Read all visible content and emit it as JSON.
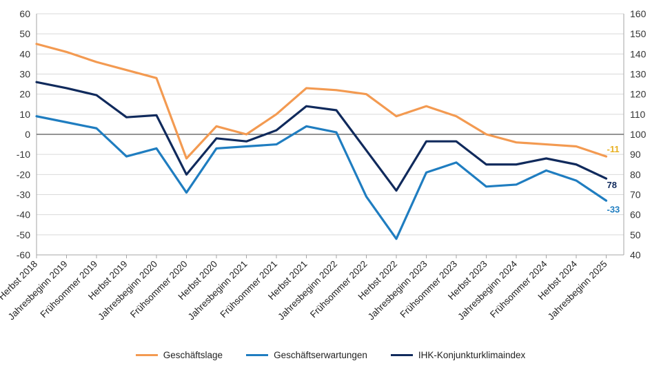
{
  "chart_data": {
    "type": "line",
    "categories": [
      "Herbst 2018",
      "Jahresbeginn 2019",
      "Frühsommer 2019",
      "Herbst 2019",
      "Jahresbeginn 2020",
      "Frühsommer 2020",
      "Herbst 2020",
      "Jahresbeginn 2021",
      "Frühsommer 2021",
      "Herbst 2021",
      "Jahresbeginn 2022",
      "Frühsommer 2022",
      "Herbst 2022",
      "Jahresbeginn 2023",
      "Frühsommer 2023",
      "Herbst 2023",
      "Jahresbeginn 2024",
      "Frühsommer 2024",
      "Herbst 2024",
      "Jahresbeginn 2025"
    ],
    "ylim": [
      -60,
      60
    ],
    "yticks": [
      -60,
      -50,
      -40,
      -30,
      -20,
      -10,
      0,
      10,
      20,
      30,
      40,
      50,
      60
    ],
    "y2lim": [
      40,
      160
    ],
    "y2ticks": [
      40,
      50,
      60,
      70,
      80,
      90,
      100,
      110,
      120,
      130,
      140,
      150,
      160
    ],
    "grid": true,
    "legend_position": "bottom",
    "series": [
      {
        "name": "Geschäftslage",
        "axis": "left",
        "color": "#F39A51",
        "values": [
          45,
          41,
          36,
          32,
          28,
          -12,
          4,
          0,
          10,
          23,
          22,
          20,
          9,
          14,
          9,
          0,
          -4,
          -5,
          -6,
          -11
        ],
        "end_label": "-11",
        "end_label_color": "#E8B020"
      },
      {
        "name": "Geschäftserwartungen",
        "axis": "left",
        "color": "#1F7DC0",
        "values": [
          9,
          6,
          3,
          -11,
          -7,
          -29,
          -7,
          -6,
          -5,
          4,
          1,
          -31,
          -52,
          -19,
          -14,
          -26,
          -25,
          -18,
          -23,
          -33
        ],
        "end_label": "-33",
        "end_label_color": "#1F7DC0"
      },
      {
        "name": "IHK-Konjunkturklimaindex",
        "axis": "right",
        "color": "#102A5C",
        "values": [
          126,
          123,
          119.5,
          108.5,
          109.5,
          80,
          98,
          96.5,
          102,
          114,
          112,
          92,
          72,
          96.5,
          96.5,
          85,
          85,
          88,
          85,
          78
        ],
        "end_label": "78",
        "end_label_color": "#102A5C"
      }
    ]
  }
}
